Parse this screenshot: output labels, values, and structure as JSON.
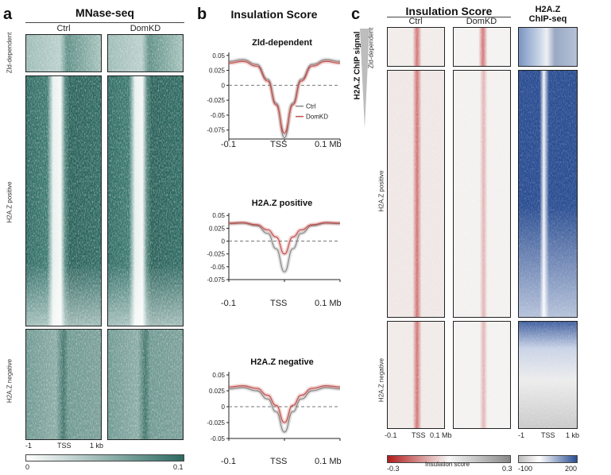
{
  "panel_a": {
    "letter": "a",
    "title": "MNase-seq",
    "columns": [
      "Ctrl",
      "DomKD"
    ],
    "rows": [
      "Zld-dependent",
      "H2A.Z positive",
      "H2A.Z negative"
    ],
    "x_ticks": [
      "-1",
      "TSS",
      "1 kb"
    ],
    "colorbar": {
      "min": "0",
      "max": "0.1",
      "low_color": "#ffffff",
      "high_color": "#2d6a62"
    }
  },
  "panel_b": {
    "letter": "b",
    "title": "Insulation Score",
    "y_ticks": [
      "0.05",
      "0.025",
      "0",
      "-0.025",
      "-0.05",
      "-0.075"
    ],
    "x_ticks": [
      "-0.1",
      "TSS",
      "0.1 Mb"
    ],
    "legend": [
      "Ctrl",
      "DomKD"
    ]
  },
  "panel_c": {
    "letter": "c",
    "title": "Insulation Score",
    "chip_title_line1": "H2A.Z",
    "chip_title_line2": "ChIP-seq",
    "columns": [
      "Ctrl",
      "DomKD"
    ],
    "side_label": "H2A.Z ChIP signal",
    "rows": [
      "Zld-dependent",
      "H2A.Z positive",
      "H2A.Z negative"
    ],
    "x_ticks_insulation": [
      "-0.1",
      "TSS",
      "0.1 Mb"
    ],
    "x_ticks_chip": [
      "-1",
      "TSS",
      "1 kb"
    ],
    "colorbar_insulation": {
      "label": "Insulation score",
      "min": "-0.3",
      "max": "0.3",
      "low_color": "#b01c1c",
      "high_color": "#888888"
    },
    "colorbar_chip": {
      "min": "-100",
      "max": "200",
      "low_color": "#bdbdbd",
      "high_color": "#2b4e92"
    }
  },
  "colors": {
    "ctrl_line": "#888888",
    "domkd_line": "#c0504d",
    "mnase": "#2d6a62",
    "chip": "#2b4e92"
  },
  "chart_data": [
    {
      "type": "line",
      "title": "Zld-dependent",
      "xlabel": "",
      "ylabel": "",
      "x": [
        -0.1,
        -0.075,
        -0.05,
        -0.03,
        -0.015,
        0,
        0.015,
        0.03,
        0.05,
        0.075,
        0.1
      ],
      "ylim": [
        -0.09,
        0.055
      ],
      "series": [
        {
          "name": "Ctrl",
          "values": [
            0.04,
            0.043,
            0.035,
            0.01,
            -0.03,
            -0.088,
            -0.03,
            0.01,
            0.035,
            0.043,
            0.04
          ]
        },
        {
          "name": "DomKD",
          "values": [
            0.037,
            0.04,
            0.032,
            0.007,
            -0.033,
            -0.08,
            -0.033,
            0.007,
            0.032,
            0.04,
            0.037
          ]
        }
      ]
    },
    {
      "type": "line",
      "title": "H2A.Z positive",
      "xlabel": "",
      "ylabel": "",
      "x": [
        -0.1,
        -0.075,
        -0.05,
        -0.03,
        -0.015,
        0,
        0.015,
        0.03,
        0.05,
        0.075,
        0.1
      ],
      "ylim": [
        -0.075,
        0.055
      ],
      "series": [
        {
          "name": "Ctrl",
          "values": [
            0.034,
            0.035,
            0.03,
            0.015,
            -0.015,
            -0.06,
            -0.015,
            0.015,
            0.03,
            0.035,
            0.034
          ]
        },
        {
          "name": "DomKD",
          "values": [
            0.035,
            0.036,
            0.032,
            0.022,
            0.008,
            -0.025,
            0.008,
            0.022,
            0.032,
            0.036,
            0.035
          ]
        }
      ]
    },
    {
      "type": "line",
      "title": "H2A.Z negative",
      "xlabel": "",
      "ylabel": "",
      "x": [
        -0.1,
        -0.075,
        -0.05,
        -0.03,
        -0.015,
        0,
        0.015,
        0.03,
        0.05,
        0.075,
        0.1
      ],
      "ylim": [
        -0.05,
        0.055
      ],
      "series": [
        {
          "name": "Ctrl",
          "values": [
            0.028,
            0.03,
            0.025,
            0.012,
            -0.008,
            -0.04,
            -0.008,
            0.012,
            0.025,
            0.03,
            0.028
          ]
        },
        {
          "name": "DomKD",
          "values": [
            0.031,
            0.033,
            0.029,
            0.018,
            0.002,
            -0.025,
            0.002,
            0.018,
            0.029,
            0.033,
            0.031
          ]
        }
      ]
    }
  ]
}
